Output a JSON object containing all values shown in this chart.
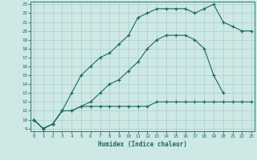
{
  "xlabel": "Humidex (Indice chaleur)",
  "xlim": [
    0,
    23
  ],
  "ylim": [
    9,
    23
  ],
  "yticks": [
    9,
    10,
    11,
    12,
    13,
    14,
    15,
    16,
    17,
    18,
    19,
    20,
    21,
    22,
    23
  ],
  "xticks": [
    0,
    1,
    2,
    3,
    4,
    5,
    6,
    7,
    8,
    9,
    10,
    11,
    12,
    13,
    14,
    15,
    16,
    17,
    18,
    19,
    20,
    21,
    22,
    23
  ],
  "line_color": "#1a6b5e",
  "bg_color": "#cde8e5",
  "grid_color": "#aacfcc",
  "line1_x": [
    0,
    1,
    2,
    3,
    4,
    5,
    6,
    7,
    8,
    9,
    10,
    11,
    12,
    13,
    14,
    15,
    16,
    17,
    18,
    19,
    20,
    21,
    22,
    23
  ],
  "line1_y": [
    10,
    9,
    9.5,
    11,
    13,
    15,
    16,
    17,
    17.5,
    18.5,
    19.5,
    21.5,
    22,
    22.5,
    22.5,
    22.5,
    22.5,
    22,
    22.5,
    23,
    21,
    20.5,
    20,
    20
  ],
  "line2_x": [
    0,
    1,
    2,
    3,
    4,
    5,
    6,
    7,
    8,
    9,
    10,
    11,
    12,
    13,
    14,
    15,
    16,
    17,
    18,
    19,
    20
  ],
  "line2_y": [
    10,
    9,
    9.5,
    11,
    11,
    11.5,
    12,
    13,
    14,
    14.5,
    15.5,
    16.5,
    18,
    19,
    19.5,
    19.5,
    19.5,
    19,
    18,
    15,
    13
  ],
  "line3_x": [
    0,
    1,
    2,
    3,
    4,
    5,
    6,
    7,
    8,
    9,
    10,
    11,
    12,
    13,
    14,
    15,
    16,
    17,
    18,
    19,
    20,
    21,
    22,
    23
  ],
  "line3_y": [
    10,
    9,
    9.5,
    11,
    11,
    11.5,
    11.5,
    11.5,
    11.5,
    11.5,
    11.5,
    11.5,
    11.5,
    12,
    12,
    12,
    12,
    12,
    12,
    12,
    12,
    12,
    12,
    12
  ]
}
